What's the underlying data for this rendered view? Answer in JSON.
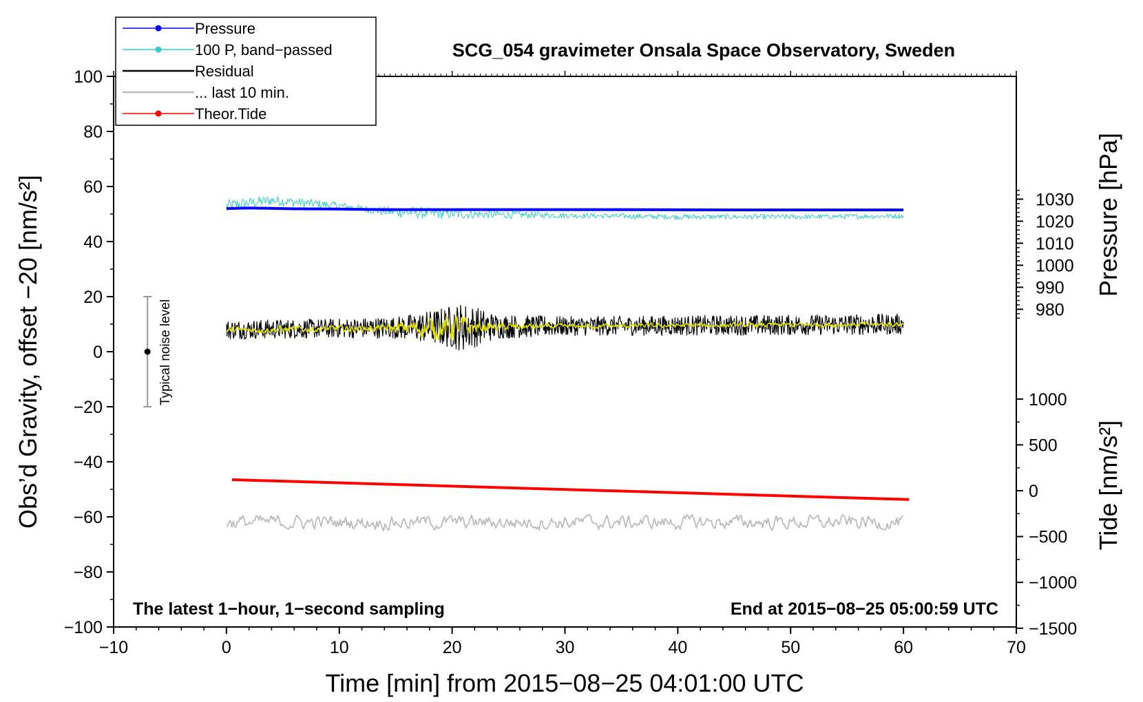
{
  "chart_data": {
    "type": "line",
    "title": "SCG_054 gravimeter Onsala Space Observatory, Sweden",
    "xlabel": "Time [min] from 2015−08−25 04:01:00 UTC",
    "ylabel": "Obs’d Gravity, offset −20 [nm/s²]",
    "ylabel_right_pressure": "Pressure [hPa]",
    "ylabel_right_tide": "Tide [nm/s²]",
    "xlim": [
      -10,
      70
    ],
    "ylim": [
      -100,
      100
    ],
    "xticks": [
      -10,
      0,
      10,
      20,
      30,
      40,
      50,
      60,
      70
    ],
    "xtick_labels": [
      "−10",
      "0",
      "10",
      "20",
      "30",
      "40",
      "50",
      "60",
      "70"
    ],
    "yticks": [
      -100,
      -80,
      -60,
      -40,
      -20,
      0,
      20,
      40,
      60,
      80,
      100
    ],
    "ytick_labels": [
      "−100",
      "−80",
      "−60",
      "−40",
      "−20",
      "0",
      "20",
      "40",
      "60",
      "80",
      "100"
    ],
    "pressure_ticks": [
      980,
      990,
      1000,
      1010,
      1020,
      1030
    ],
    "pressure_tick_labels": [
      "980",
      "990",
      "1000",
      "1010",
      "1020",
      "1030"
    ],
    "pressure_axis_map": {
      "ref_value": 980,
      "ref_y": 15.4,
      "scale_y_per_hPa": 0.8
    },
    "tide_ticks": [
      -1500,
      -1000,
      -500,
      0,
      500,
      1000
    ],
    "tide_tick_labels": [
      "−1500",
      "−1000",
      "−500",
      "0",
      "500",
      "1000"
    ],
    "tide_axis_map": {
      "ref_value": 0,
      "ref_y": -50.5,
      "scale_y_per_unit": 0.0333
    },
    "legend": {
      "placement": "top-left",
      "entries": [
        {
          "label": "Pressure",
          "color": "#0000ff",
          "marker": true
        },
        {
          "label": "100 P, band−passed",
          "color": "#33cccc",
          "marker": true
        },
        {
          "label": "Residual",
          "color": "#000000",
          "marker": false
        },
        {
          "label": "... last 10 min.",
          "color": "#bbbbbb",
          "marker": false
        },
        {
          "label": "Theor.Tide",
          "color": "#ff0000",
          "marker": true
        }
      ]
    },
    "annotations": {
      "bottom_left": "The latest 1−hour, 1−second sampling",
      "bottom_right": "End at 2015−08−25 05:00:59 UTC",
      "noise_label": "Typical noise level"
    },
    "noise_bar": {
      "x": -7,
      "center": 0,
      "low": -20,
      "high": 20
    },
    "series": [
      {
        "name": "Pressure",
        "color": "#0000ff",
        "x": [
          0,
          2,
          6,
          10,
          14,
          18,
          25,
          35,
          45,
          55,
          60
        ],
        "y": [
          52,
          52.2,
          51.9,
          51.8,
          51.6,
          51.6,
          51.6,
          51.6,
          51.5,
          51.5,
          51.5
        ]
      },
      {
        "name": "100 P, band-passed",
        "color": "#33cccc",
        "base": [
          [
            0,
            53
          ],
          [
            4,
            55
          ],
          [
            10,
            53
          ],
          [
            14,
            51
          ],
          [
            20,
            50
          ],
          [
            30,
            49.5
          ],
          [
            40,
            49
          ],
          [
            50,
            49
          ],
          [
            60,
            49.3
          ]
        ],
        "amplitude": [
          [
            0,
            2.2
          ],
          [
            5,
            1.8
          ],
          [
            12,
            1.2
          ],
          [
            16,
            2.2
          ],
          [
            22,
            1.6
          ],
          [
            30,
            1
          ],
          [
            60,
            0.9
          ]
        ]
      },
      {
        "name": "Residual",
        "color": "#000000",
        "base": [
          [
            0,
            8
          ],
          [
            10,
            8.5
          ],
          [
            20,
            9
          ],
          [
            30,
            9.3
          ],
          [
            40,
            9.5
          ],
          [
            50,
            9.7
          ],
          [
            60,
            10
          ]
        ],
        "amplitude": [
          [
            0,
            3.5
          ],
          [
            10,
            3.5
          ],
          [
            15,
            4
          ],
          [
            18,
            6
          ],
          [
            21,
            9
          ],
          [
            24,
            4.5
          ],
          [
            30,
            3.5
          ],
          [
            60,
            3.8
          ]
        ]
      },
      {
        "name": "Residual (filtered)",
        "color": "#dddd00",
        "base": [
          [
            0,
            7.8
          ],
          [
            10,
            8.3
          ],
          [
            20,
            8.8
          ],
          [
            30,
            9.2
          ],
          [
            40,
            9.5
          ],
          [
            50,
            9.7
          ],
          [
            60,
            10
          ]
        ],
        "amplitude": [
          [
            0,
            1
          ],
          [
            14,
            1.2
          ],
          [
            17,
            3
          ],
          [
            20,
            4.5
          ],
          [
            23,
            1.5
          ],
          [
            30,
            0.8
          ],
          [
            60,
            0.8
          ]
        ]
      },
      {
        "name": "... last 10 min.",
        "color": "#bbbbbb",
        "base": [
          [
            0,
            -62
          ],
          [
            60,
            -62
          ]
        ],
        "amplitude": [
          [
            0,
            2.5
          ],
          [
            60,
            2.5
          ]
        ]
      },
      {
        "name": "Theor.Tide",
        "color": "#ff0000",
        "x": [
          0.5,
          60.5
        ],
        "y": [
          -46.5,
          -53.7
        ]
      }
    ]
  }
}
